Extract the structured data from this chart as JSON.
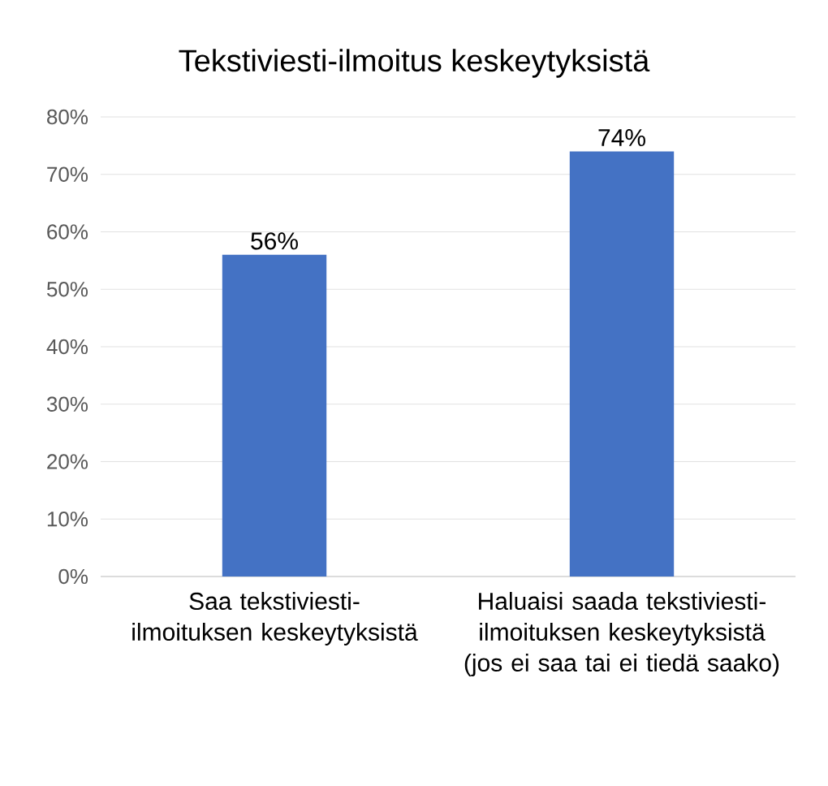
{
  "chart_data": {
    "type": "bar",
    "title": "Tekstiviesti-ilmoitus keskeytyksistä",
    "categories": [
      "Saa tekstiviesti-ilmoituksen keskeytyksistä",
      "Haluaisi saada tekstiviesti-ilmoituksen keskeytyksistä (jos ei saa tai ei tiedä saako)"
    ],
    "values": [
      56,
      74
    ],
    "value_labels": [
      "56%",
      "74%"
    ],
    "color": "#4472c4",
    "ylim": [
      0,
      80
    ],
    "yticks": [
      {
        "value": 0,
        "label": "0%"
      },
      {
        "value": 10,
        "label": "10%"
      },
      {
        "value": 20,
        "label": "20%"
      },
      {
        "value": 30,
        "label": "30%"
      },
      {
        "value": 40,
        "label": "40%"
      },
      {
        "value": 50,
        "label": "50%"
      },
      {
        "value": 60,
        "label": "60%"
      },
      {
        "value": 70,
        "label": "70%"
      },
      {
        "value": 80,
        "label": "80%"
      }
    ],
    "grid": "y"
  }
}
